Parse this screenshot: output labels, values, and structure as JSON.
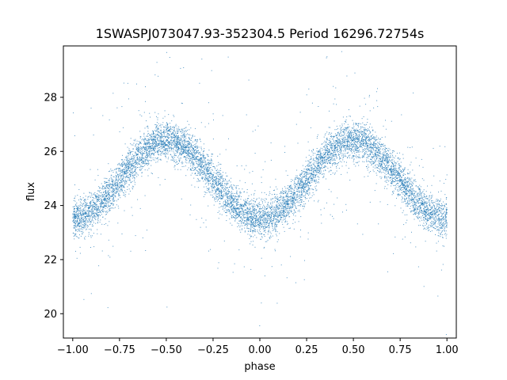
{
  "chart_data": {
    "type": "scatter",
    "title": "1SWASPJ073047.93-352304.5 Period 16296.72754s",
    "xlabel": "phase",
    "ylabel": "flux",
    "xlim": [
      -1.05,
      1.05
    ],
    "ylim": [
      19.1,
      29.9
    ],
    "xticks": [
      -1.0,
      -0.75,
      -0.5,
      -0.25,
      0.0,
      0.25,
      0.5,
      0.75,
      1.0
    ],
    "xtick_labels": [
      "−1.00",
      "−0.75",
      "−0.50",
      "−0.25",
      "0.00",
      "0.25",
      "0.50",
      "0.75",
      "1.00"
    ],
    "yticks": [
      20,
      22,
      24,
      26,
      28
    ],
    "ytick_labels": [
      "20",
      "22",
      "24",
      "26",
      "28"
    ],
    "grid": false,
    "legend": "none",
    "point_color": "#1f77b4",
    "model": {
      "description": "folded light curve, sinusoid with period 1 in phase",
      "mean_flux": 24.95,
      "amplitude": 1.45,
      "peak_phases": [
        -0.5,
        0.5
      ],
      "min_phases": [
        -1.0,
        0.0,
        1.0
      ],
      "scatter_sigma": 0.35,
      "n_points": 9000,
      "outlier_fraction": 0.05
    }
  }
}
